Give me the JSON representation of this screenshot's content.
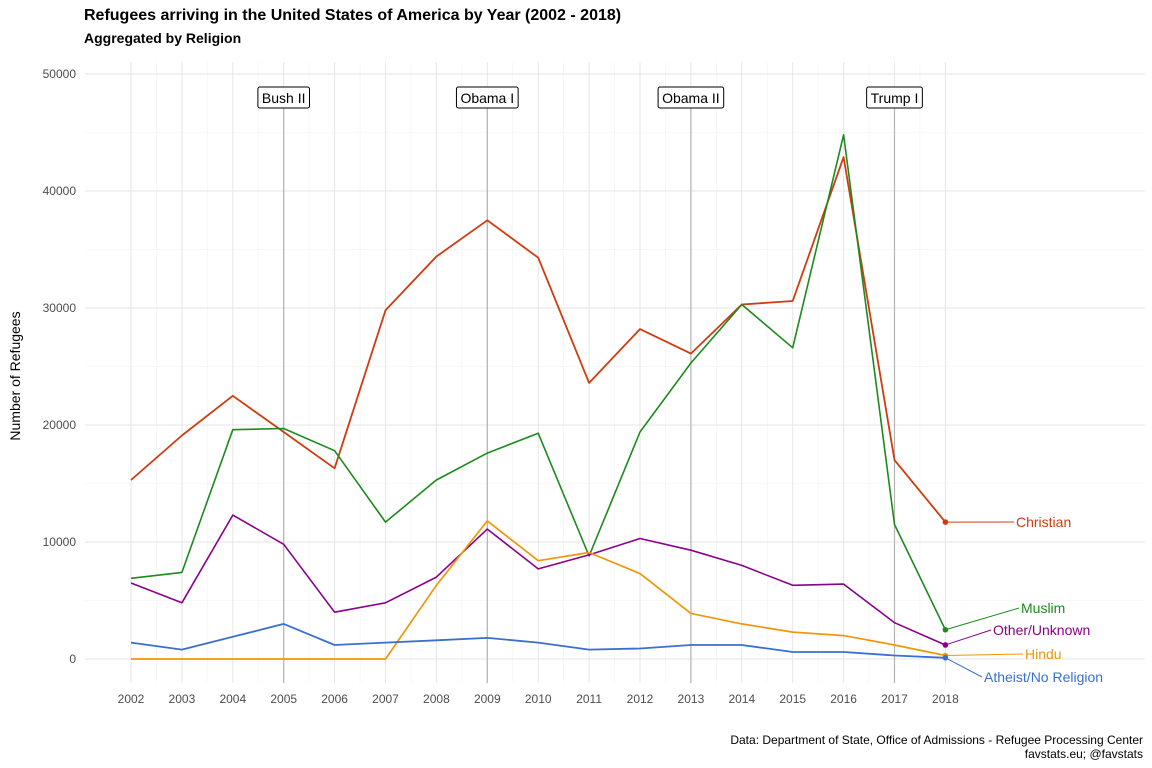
{
  "chart_data": {
    "type": "line",
    "title": "Refugees arriving in the United States of America by Year (2002 - 2018)",
    "subtitle": "Aggregated by Religion",
    "xlabel": "",
    "ylabel": "Number of Refugees",
    "x": [
      2002,
      2003,
      2004,
      2005,
      2006,
      2007,
      2008,
      2009,
      2010,
      2011,
      2012,
      2013,
      2014,
      2015,
      2016,
      2017,
      2018
    ],
    "ylim": [
      0,
      50000
    ],
    "yticks": [
      0,
      10000,
      20000,
      30000,
      40000,
      50000
    ],
    "ytick_labels": [
      "0",
      "10000",
      "20000",
      "30000",
      "40000",
      "50000"
    ],
    "grid": true,
    "legend": "direct labels at line ends (right)",
    "series": [
      {
        "name": "Christian",
        "color": "#d03b0f",
        "values": [
          15300,
          19100,
          22500,
          19400,
          16300,
          29800,
          34400,
          37500,
          34300,
          23600,
          28200,
          26100,
          30300,
          30600,
          42900,
          17000,
          11700
        ]
      },
      {
        "name": "Muslim",
        "color": "#1c8a1c",
        "values": [
          6900,
          7400,
          19600,
          19700,
          17800,
          11700,
          15300,
          17600,
          19300,
          8800,
          19400,
          25300,
          30300,
          26600,
          44800,
          11500,
          2500
        ]
      },
      {
        "name": "Other/Unknown",
        "color": "#8b008b",
        "values": [
          6500,
          4800,
          12300,
          9800,
          4000,
          4800,
          7000,
          11100,
          7700,
          8900,
          10300,
          9300,
          8000,
          6300,
          6400,
          3100,
          1200
        ]
      },
      {
        "name": "Hindu",
        "color": "#f0960a",
        "values": [
          0,
          0,
          0,
          0,
          0,
          0,
          6300,
          11800,
          8400,
          9100,
          7300,
          3900,
          3000,
          2300,
          2000,
          1200,
          300
        ]
      },
      {
        "name": "Atheist/No Religion",
        "color": "#3a6fcf",
        "values": [
          1400,
          800,
          1900,
          3000,
          1200,
          1400,
          1600,
          1800,
          1400,
          800,
          900,
          1200,
          1200,
          600,
          600,
          300,
          100
        ]
      }
    ],
    "annotations": [
      {
        "label": "Bush II",
        "x": 2005
      },
      {
        "label": "Obama I",
        "x": 2009
      },
      {
        "label": "Obama II",
        "x": 2013
      },
      {
        "label": "Trump I",
        "x": 2017
      }
    ]
  },
  "caption": {
    "line1": "Data: Department of State, Office of Admissions - Refugee Processing Center",
    "line2": "favstats.eu; @favstats"
  }
}
